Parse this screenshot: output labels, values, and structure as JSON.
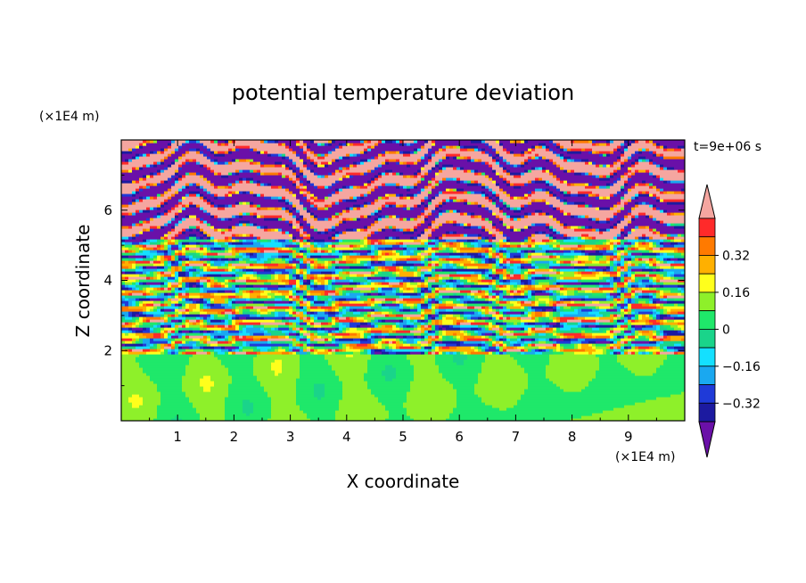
{
  "chart_data": {
    "type": "heatmap",
    "title": "potential temperature deviation",
    "xlabel": "X coordinate",
    "ylabel": "Z coordinate",
    "x_unit": "(×1E4 m)",
    "y_unit": "(×1E4 m)",
    "time_label": "t=9e+06 s",
    "xlim": [
      0,
      10
    ],
    "ylim": [
      0,
      8
    ],
    "x_ticks": [
      "1",
      "2",
      "3",
      "4",
      "5",
      "6",
      "7",
      "8",
      "9"
    ],
    "y_ticks": [
      "2",
      "4",
      "6"
    ],
    "colorbar": {
      "levels": [
        -0.48,
        -0.4,
        -0.32,
        -0.24,
        -0.16,
        -0.08,
        0,
        0.08,
        0.16,
        0.24,
        0.32,
        0.4,
        0.48
      ],
      "colors": [
        "#6a10a8",
        "#1c1aa0",
        "#1f3ad8",
        "#1aa8f0",
        "#14e0ff",
        "#1ad48a",
        "#1fe86a",
        "#8ef02a",
        "#ffff1c",
        "#ffb000",
        "#ff7a00",
        "#ff2a2a",
        "#f5a6a0"
      ],
      "labels": [
        "0.32",
        "0.16",
        "0",
        "−0.16",
        "−0.32"
      ],
      "extend": "both"
    },
    "regions": [
      {
        "name": "lower layer (z < 2)",
        "dominant_value": 0.0,
        "description": "mostly green / light-green, near zero"
      },
      {
        "name": "middle layer (2 < z < 5)",
        "dominant_value": "mixed",
        "description": "thin horizontal bands alternating -0.4 to +0.4"
      },
      {
        "name": "upper layer (z > 5)",
        "dominant_value": "alternating ±0.48",
        "description": "broad pink and purple horizontal bands"
      }
    ]
  }
}
